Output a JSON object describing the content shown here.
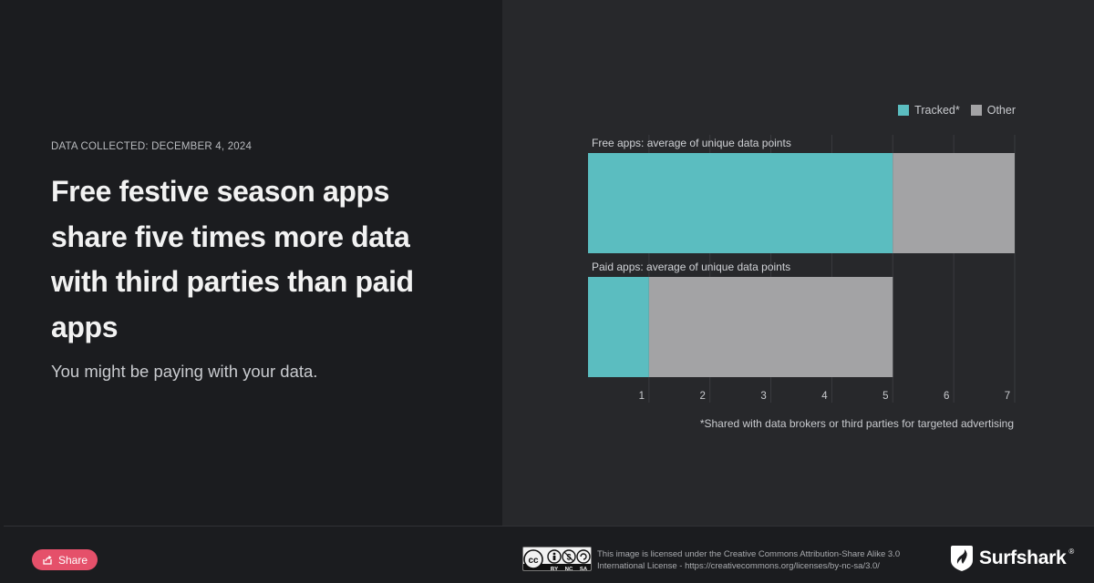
{
  "header": {
    "date_label": "DATA COLLECTED: DECEMBER 4, 2024",
    "headline": "Free festive season apps share five times more data with third parties than paid apps",
    "subhead": "You might be paying with your data."
  },
  "colors": {
    "tracked": "#5bbdc0",
    "other": "#a3a3a5",
    "background_left": "#1b1c1f",
    "background_right": "#27282b",
    "share_button": "#e5506a"
  },
  "chart_data": {
    "type": "bar",
    "orientation": "horizontal",
    "stacked": true,
    "categories": [
      "Free apps: average of unique data points",
      "Paid apps: average of unique data points"
    ],
    "series": [
      {
        "name": "Tracked*",
        "values": [
          5,
          1
        ]
      },
      {
        "name": "Other",
        "values": [
          2,
          4
        ]
      }
    ],
    "x_ticks": [
      "1",
      "2",
      "3",
      "4",
      "5",
      "6",
      "7"
    ],
    "xlim": [
      0,
      7
    ],
    "grid": true,
    "legend_position": "top-right",
    "footnote": "*Shared with data brokers or third parties for targeted advertising"
  },
  "footer": {
    "share_label": "Share",
    "share_icon": "share-icon",
    "cc_labels": [
      "BY",
      "NC",
      "SA"
    ],
    "license_text": "This image is licensed under the Creative Commons Attribution-Share Alike 3.0 International License - https://creativecommons.org/licenses/by-nc-sa/3.0/",
    "brand_name": "Surfshark",
    "brand_reg": "®"
  }
}
